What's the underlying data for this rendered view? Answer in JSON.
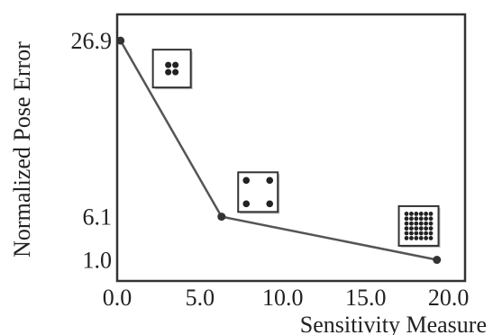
{
  "chart_data": {
    "type": "line",
    "title": "",
    "xlabel": "Sensitivity Measure",
    "ylabel": "Normalized Pose Error",
    "xlim": [
      0,
      21
    ],
    "ylim": [
      -1.5,
      30.0
    ],
    "x_ticks": [
      {
        "value": 0.0,
        "label": "0.0"
      },
      {
        "value": 5.0,
        "label": "5.0"
      },
      {
        "value": 10.0,
        "label": "10.0"
      },
      {
        "value": 15.0,
        "label": "15.0"
      },
      {
        "value": 20.0,
        "label": "20.0"
      }
    ],
    "y_ticks": [
      {
        "value": 1.0,
        "label": "1.0"
      },
      {
        "value": 6.1,
        "label": "6.1"
      },
      {
        "value": 26.9,
        "label": "26.9"
      }
    ],
    "grid": false,
    "legend": "none",
    "series": [
      {
        "x": [
          0.2,
          6.3,
          19.3
        ],
        "y": [
          26.9,
          6.1,
          1.0
        ],
        "color": "#555555"
      }
    ],
    "insets": [
      {
        "name": "four-close-points",
        "x": 3.3,
        "y": 23.6,
        "dots": "2x2-close"
      },
      {
        "name": "four-spread-points",
        "x": 8.5,
        "y": 9.0,
        "dots": "2x2-spread"
      },
      {
        "name": "grid-points",
        "x": 18.2,
        "y": 5.0,
        "dots": "grid"
      }
    ]
  }
}
